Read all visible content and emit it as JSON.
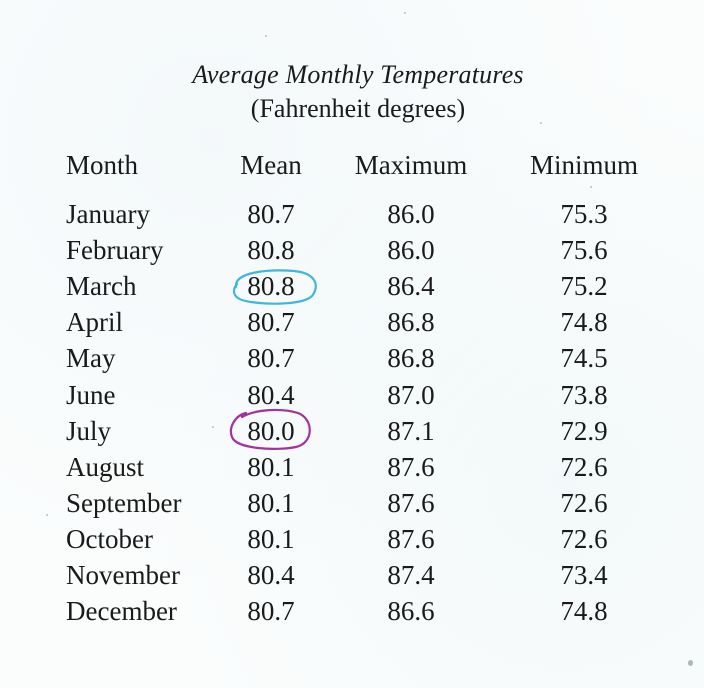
{
  "table": {
    "title": "Average Monthly Temperatures",
    "subtitle": "(Fahrenheit degrees)",
    "headers": {
      "month": "Month",
      "mean": "Mean",
      "max": "Maximum",
      "min": "Minimum"
    },
    "rows": [
      {
        "month": "January",
        "mean": "80.7",
        "max": "86.0",
        "min": "75.3"
      },
      {
        "month": "February",
        "mean": "80.8",
        "max": "86.0",
        "min": "75.6"
      },
      {
        "month": "March",
        "mean": "80.8",
        "max": "86.4",
        "min": "75.2"
      },
      {
        "month": "April",
        "mean": "80.7",
        "max": "86.8",
        "min": "74.8"
      },
      {
        "month": "May",
        "mean": "80.7",
        "max": "86.8",
        "min": "74.5"
      },
      {
        "month": "June",
        "mean": "80.4",
        "max": "87.0",
        "min": "73.8"
      },
      {
        "month": "July",
        "mean": "80.0",
        "max": "87.1",
        "min": "72.9"
      },
      {
        "month": "August",
        "mean": "80.1",
        "max": "87.6",
        "min": "72.6"
      },
      {
        "month": "September",
        "mean": "80.1",
        "max": "87.6",
        "min": "72.6"
      },
      {
        "month": "October",
        "mean": "80.1",
        "max": "87.6",
        "min": "72.6"
      },
      {
        "month": "November",
        "mean": "80.4",
        "max": "87.4",
        "min": "73.4"
      },
      {
        "month": "December",
        "mean": "80.7",
        "max": "86.6",
        "min": "74.8"
      }
    ]
  },
  "annotations": {
    "march_circle_color": "#3fb6dc",
    "july_circle_color": "#a0339c"
  }
}
